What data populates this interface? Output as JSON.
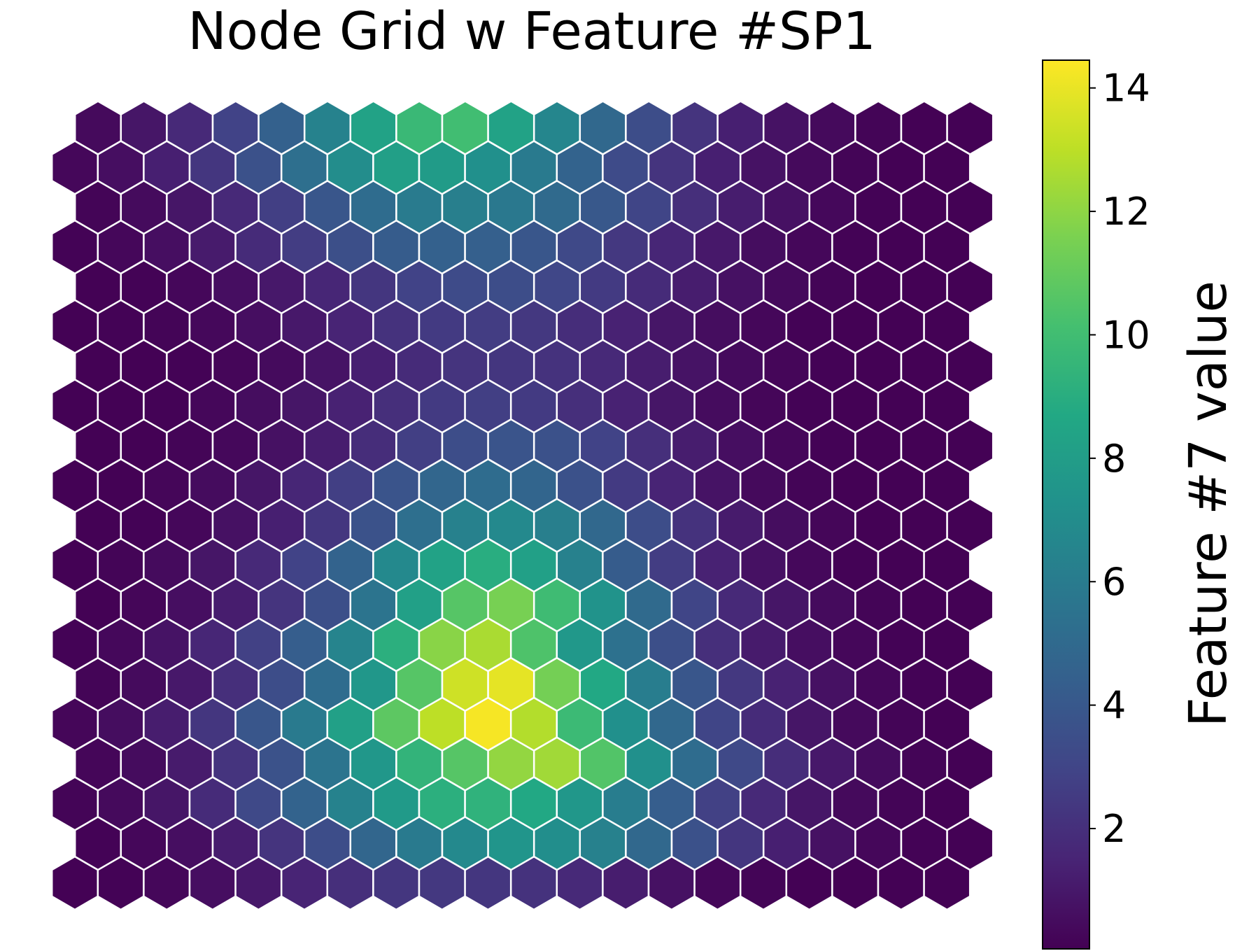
{
  "chart_data": {
    "type": "heatmap",
    "subtype": "hexagonal-som-node-grid",
    "title": "Node Grid w Feature #SP1",
    "colormap": "viridis",
    "grid": false,
    "columns": 20,
    "rows": 20,
    "values": [
      [
        0.1,
        0.15,
        0.3,
        0.6,
        1.0,
        1.5,
        2.0,
        2.3,
        2.4,
        2.3,
        2.1,
        1.7,
        1.2,
        0.7,
        0.3,
        0.2,
        0.1,
        0.1,
        0.1,
        0.1
      ],
      [
        0.15,
        0.3,
        0.6,
        1.2,
        2.2,
        3.4,
        4.8,
        5.9,
        6.8,
        7.5,
        7.1,
        6.3,
        4.9,
        3.6,
        2.3,
        1.3,
        0.7,
        0.3,
        0.15,
        0.1
      ],
      [
        0.2,
        0.4,
        0.9,
        1.8,
        3.2,
        4.6,
        6.4,
        7.8,
        9.1,
        9.3,
        8.7,
        7.6,
        6.1,
        4.3,
        2.8,
        1.7,
        0.9,
        0.4,
        0.2,
        0.1
      ],
      [
        0.25,
        0.5,
        1.1,
        2.2,
        3.7,
        5.6,
        7.6,
        9.4,
        10.6,
        12.1,
        12.4,
        10.5,
        7.2,
        5.1,
        3.2,
        1.9,
        1.0,
        0.5,
        0.2,
        0.1
      ],
      [
        0.25,
        0.55,
        1.2,
        2.3,
        3.9,
        5.9,
        8.2,
        10.8,
        13.0,
        14.3,
        12.8,
        9.8,
        7.2,
        4.9,
        3.0,
        1.8,
        0.9,
        0.4,
        0.2,
        0.1
      ],
      [
        0.2,
        0.45,
        1.0,
        2.0,
        3.4,
        5.1,
        7.6,
        10.6,
        13.4,
        13.9,
        11.4,
        8.7,
        6.1,
        3.9,
        2.4,
        1.4,
        0.7,
        0.3,
        0.15,
        0.1
      ],
      [
        0.15,
        0.35,
        0.8,
        1.6,
        2.8,
        4.3,
        6.5,
        9.1,
        11.9,
        12.6,
        10.4,
        7.7,
        5.4,
        3.5,
        2.0,
        1.1,
        0.6,
        0.3,
        0.15,
        0.1
      ],
      [
        0.1,
        0.25,
        0.6,
        1.2,
        2.2,
        3.5,
        5.6,
        8.2,
        10.6,
        11.5,
        9.9,
        7.4,
        5.0,
        3.0,
        1.7,
        0.9,
        0.45,
        0.2,
        0.1,
        0.1
      ],
      [
        0.1,
        0.2,
        0.45,
        0.9,
        1.7,
        2.9,
        4.6,
        6.8,
        8.3,
        9.0,
        8.2,
        6.3,
        4.2,
        2.6,
        1.4,
        0.7,
        0.35,
        0.15,
        0.1,
        0.1
      ],
      [
        0.1,
        0.15,
        0.3,
        0.7,
        1.3,
        2.3,
        3.7,
        5.3,
        6.3,
        6.8,
        6.2,
        4.9,
        3.4,
        2.1,
        1.1,
        0.55,
        0.25,
        0.1,
        0.1,
        0.1
      ],
      [
        0.1,
        0.1,
        0.25,
        0.5,
        0.9,
        1.6,
        2.7,
        3.8,
        4.8,
        5.1,
        4.7,
        3.6,
        2.5,
        1.5,
        0.8,
        0.4,
        0.2,
        0.1,
        0.1,
        0.1
      ],
      [
        0.1,
        0.1,
        0.2,
        0.35,
        0.7,
        1.2,
        1.9,
        2.7,
        3.4,
        3.8,
        3.6,
        2.9,
        2.0,
        1.2,
        0.6,
        0.3,
        0.15,
        0.1,
        0.1,
        0.1
      ],
      [
        0.1,
        0.1,
        0.15,
        0.3,
        0.55,
        0.9,
        1.4,
        2.0,
        2.5,
        2.7,
        2.5,
        2.0,
        1.4,
        0.9,
        0.5,
        0.25,
        0.15,
        0.1,
        0.1,
        0.1
      ],
      [
        0.1,
        0.1,
        0.15,
        0.25,
        0.45,
        0.8,
        1.3,
        1.8,
        2.2,
        2.3,
        2.1,
        1.7,
        1.2,
        0.8,
        0.45,
        0.25,
        0.15,
        0.1,
        0.1,
        0.1
      ],
      [
        0.1,
        0.15,
        0.2,
        0.35,
        0.6,
        1.0,
        1.5,
        2.1,
        2.5,
        2.6,
        2.4,
        1.9,
        1.4,
        0.9,
        0.55,
        0.3,
        0.15,
        0.1,
        0.1,
        0.1
      ],
      [
        0.1,
        0.15,
        0.3,
        0.6,
        1.0,
        1.6,
        2.3,
        2.9,
        3.3,
        3.4,
        3.1,
        2.5,
        1.8,
        1.2,
        0.7,
        0.4,
        0.2,
        0.1,
        0.1,
        0.1
      ],
      [
        0.15,
        0.3,
        0.6,
        1.1,
        1.8,
        2.6,
        3.5,
        4.2,
        4.5,
        4.4,
        3.9,
        3.2,
        2.4,
        1.6,
        1.0,
        0.55,
        0.3,
        0.15,
        0.1,
        0.1
      ],
      [
        0.2,
        0.45,
        0.9,
        1.7,
        2.7,
        3.9,
        5.1,
        6.0,
        6.2,
        5.8,
        5.0,
        4.0,
        3.0,
        2.0,
        1.2,
        0.7,
        0.35,
        0.15,
        0.1,
        0.1
      ],
      [
        0.3,
        0.6,
        1.3,
        2.3,
        3.6,
        5.3,
        7.0,
        8.1,
        7.9,
        7.2,
        5.9,
        4.6,
        3.3,
        2.2,
        1.3,
        0.75,
        0.4,
        0.2,
        0.1,
        0.1
      ],
      [
        0.4,
        0.9,
        1.7,
        2.9,
        4.5,
        6.4,
        8.3,
        9.7,
        10.0,
        8.3,
        6.6,
        4.9,
        3.4,
        2.2,
        1.3,
        0.75,
        0.4,
        0.2,
        0.1,
        0.1
      ]
    ],
    "colorbar": {
      "label": "Feature #7 value",
      "ticks": [
        "2",
        "4",
        "6",
        "8",
        "10",
        "12",
        "14"
      ],
      "tick_values": [
        2,
        4,
        6,
        8,
        10,
        12,
        14
      ],
      "vmin": 0.05,
      "vmax": 14.45
    }
  }
}
